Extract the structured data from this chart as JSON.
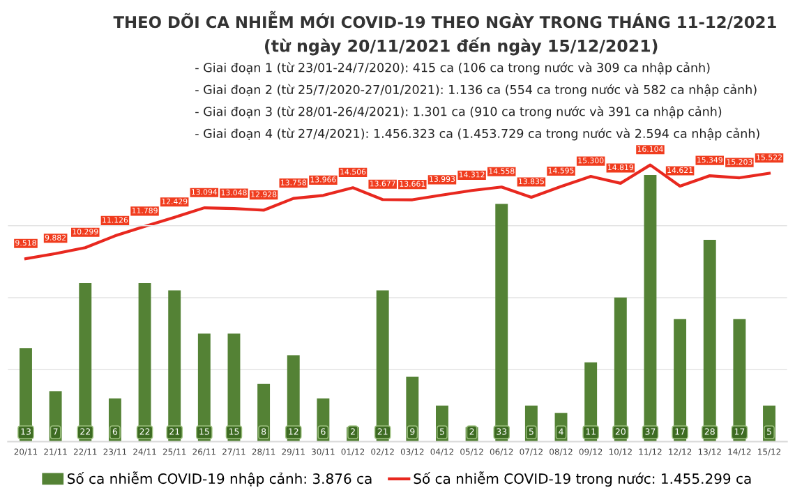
{
  "chart_data": {
    "type": "bar",
    "title": "THEO DÕI CA NHIỄM MỚI COVID-19 THEO NGÀY TRONG THÁNG 11-12/2021",
    "subtitle": "(từ ngày 20/11/2021 đến ngày 15/12/2021)",
    "annotations": [
      "- Giai đoạn 1 (từ 23/01-24/7/2020): 415 ca (106 ca trong nước và 309 ca nhập cảnh)",
      "- Giai đoạn 2 (từ 25/7/2020-27/01/2021): 1.136 ca (554 ca trong nước và 582 ca nhập cảnh)",
      "- Giai đoạn 3 (từ 28/01-26/4/2021): 1.301 ca (910 ca trong nước và 391 ca nhập cảnh)",
      "- Giai đoạn 4 (từ 27/4/2021): 1.456.323 ca (1.453.729 ca trong nước và 2.594 ca nhập cảnh)"
    ],
    "categories": [
      "20/11",
      "21/11",
      "22/11",
      "23/11",
      "24/11",
      "25/11",
      "26/11",
      "27/11",
      "28/11",
      "29/11",
      "30/11",
      "01/12",
      "02/12",
      "03/12",
      "04/12",
      "05/12",
      "06/12",
      "07/12",
      "08/12",
      "09/12",
      "10/12",
      "11/12",
      "12/12",
      "13/12",
      "14/12",
      "15/12"
    ],
    "series": [
      {
        "name": "Số ca nhiễm COVID-19 nhập cảnh: 3.876 ca",
        "color": "#548235",
        "values": [
          13,
          7,
          22,
          6,
          22,
          21,
          15,
          15,
          8,
          12,
          6,
          2,
          21,
          9,
          5,
          2,
          33,
          5,
          4,
          11,
          20,
          37,
          17,
          28,
          17,
          5
        ],
        "value_labels": [
          "13",
          "7",
          "22",
          "6",
          "22",
          "21",
          "15",
          "15",
          "8",
          "12",
          "6",
          "2",
          "21",
          "9",
          "5",
          "2",
          "33",
          "5",
          "4",
          "11",
          "20",
          "37",
          "17",
          "28",
          "17",
          "5"
        ]
      },
      {
        "name": "Số ca nhiễm COVID-19 trong nước: 1.455.299 ca",
        "type": "line",
        "axis": "y2",
        "color": "#e8281f",
        "values": [
          9518,
          9882,
          10299,
          11126,
          11789,
          12429,
          13094,
          13048,
          12928,
          13758,
          13966,
          14506,
          13677,
          13661,
          13993,
          14312,
          14558,
          13835,
          14595,
          15300,
          14819,
          16104,
          14621,
          15349,
          15203,
          15522
        ],
        "value_labels": [
          "9.518",
          "9.882",
          "10.299",
          "11.126",
          "11.789",
          "12.429",
          "13.094",
          "13.048",
          "12.928",
          "13.758",
          "13.966",
          "14.506",
          "13.677",
          "13.661",
          "13.993",
          "14.312",
          "14.558",
          "13.835",
          "14.595",
          "15.300",
          "14.819",
          "16.104",
          "14.621",
          "15.349",
          "15.203",
          "15.522"
        ]
      }
    ],
    "grid": "y",
    "legend": "bottom",
    "tick_labels": "x"
  }
}
